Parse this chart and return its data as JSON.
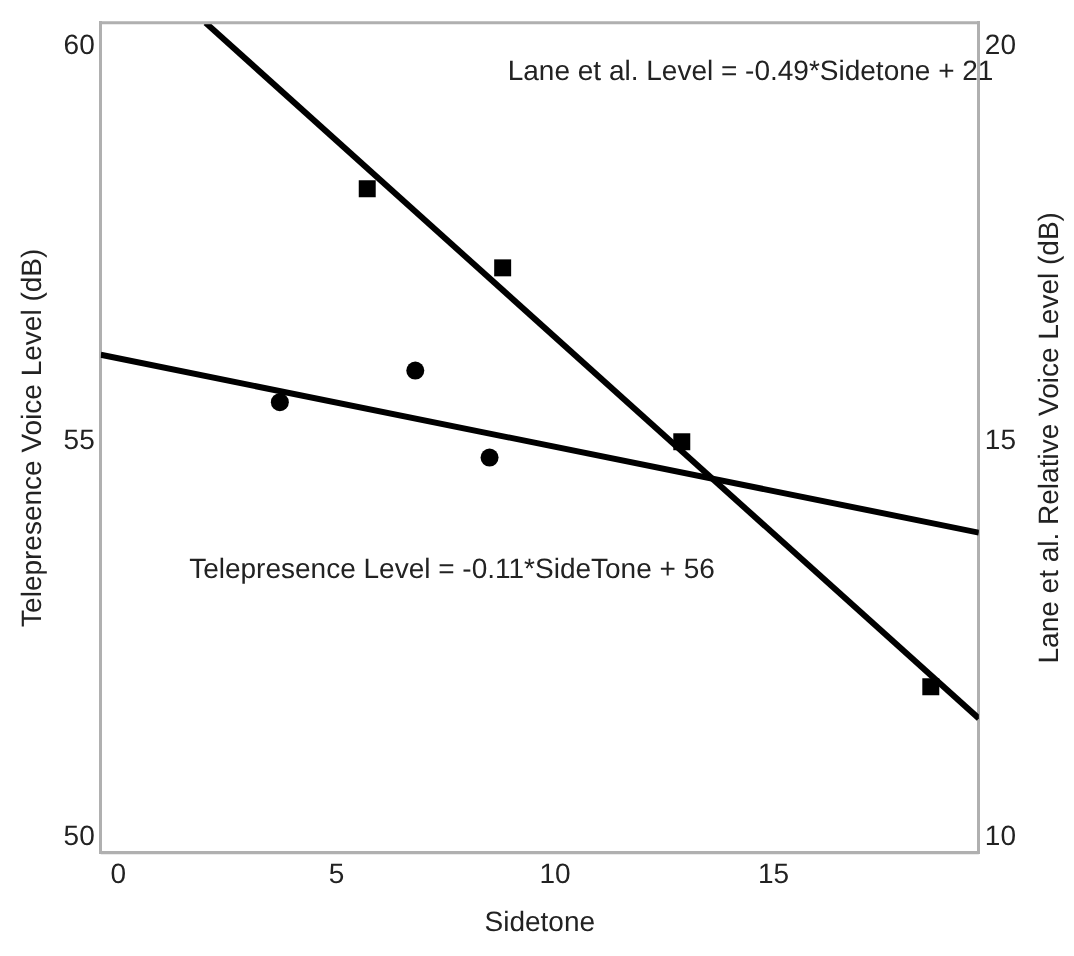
{
  "chart_data": {
    "type": "scatter",
    "xlabel": "Sidetone",
    "ylabel": "Telepresence Voice Level (dB)",
    "y2label": "Lane et al. Relative Voice Level (dB)",
    "annotations": [
      "Lane et al. Level = -0.49*Sidetone + 21",
      "Telepresence Level = -0.11*SideTone + 56"
    ],
    "xlim": [
      -0.4,
      19.7
    ],
    "xticks": [
      0,
      5,
      10,
      15
    ],
    "ylim": [
      49.8,
      60.3
    ],
    "yticks": [
      50,
      55,
      60
    ],
    "y2lim": [
      9.8,
      20.3
    ],
    "y2ticks": [
      10,
      15,
      20
    ],
    "grid": false,
    "legend": false,
    "series": [
      {
        "marker": "circle",
        "color": "#000000",
        "x": [
          3.7,
          6.8,
          8.5
        ],
        "values": [
          55.5,
          55.9,
          54.8
        ]
      },
      {
        "marker": "square",
        "color": "#000000",
        "axis": "y2",
        "x": [
          5.7,
          8.8,
          12.9,
          18.6
        ],
        "values": [
          18.2,
          17.2,
          15.0,
          11.9
        ]
      },
      {
        "type": "line",
        "marker": "none",
        "color": "#000000",
        "x": [
          -0.4,
          19.7
        ],
        "values": [
          56.1,
          53.85
        ]
      },
      {
        "type": "line",
        "marker": "none",
        "color": "#000000",
        "axis": "y2",
        "x": [
          2.0,
          19.7
        ],
        "values": [
          20.3,
          11.5
        ]
      }
    ]
  }
}
